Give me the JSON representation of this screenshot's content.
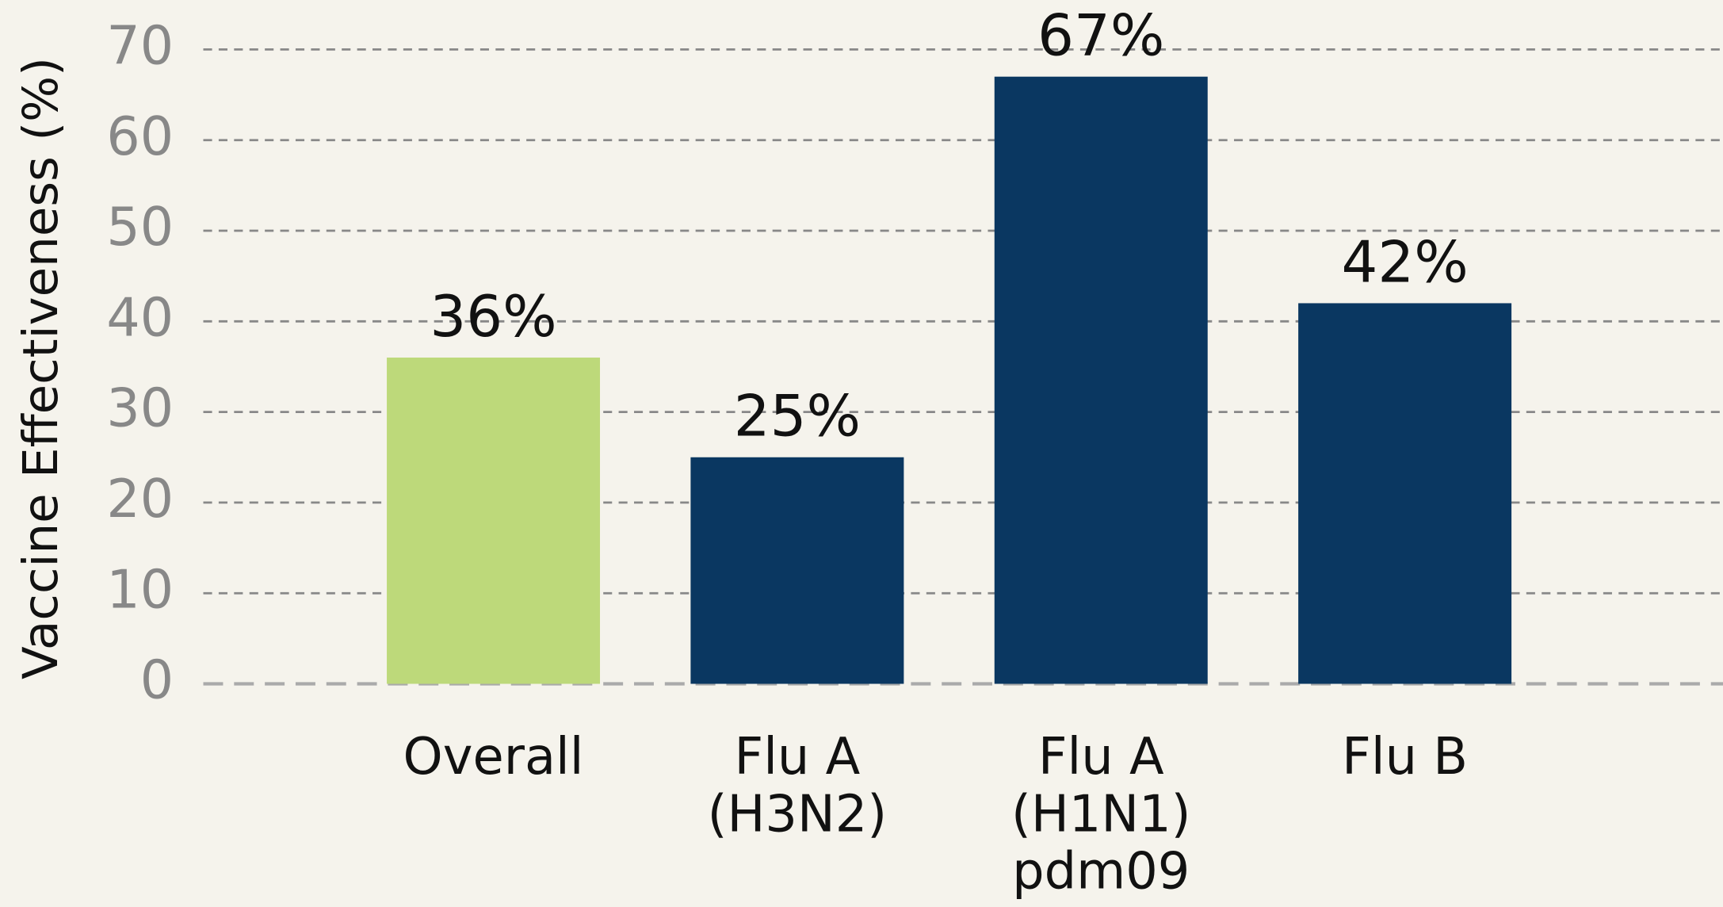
{
  "chart_data": {
    "type": "bar",
    "y_label": "Vaccine Effectiveness (%)",
    "categories": [
      "Overall",
      "Flu A\n(H3N2)",
      "Flu A\n(H1N1)\npdm09",
      "Flu B"
    ],
    "values": [
      36,
      25,
      67,
      42
    ],
    "value_labels": [
      "36%",
      "25%",
      "67%",
      "42%"
    ],
    "colors": [
      "#bdd97a",
      "#0a3761",
      "#0a3761",
      "#0a3761"
    ],
    "ylim": [
      0,
      70
    ],
    "yticks": [
      0,
      10,
      20,
      30,
      40,
      50,
      60,
      70
    ],
    "grid": true
  }
}
